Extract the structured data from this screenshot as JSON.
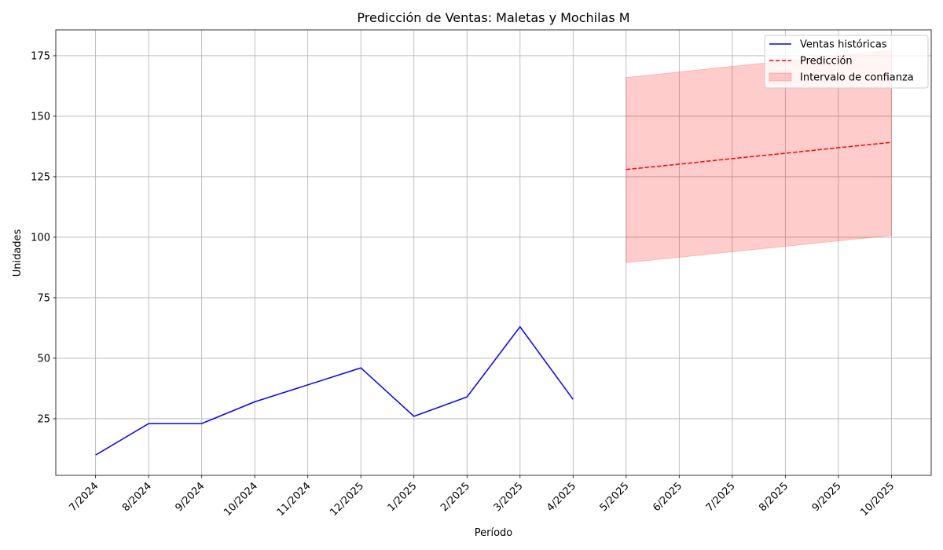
{
  "chart_data": {
    "type": "line",
    "title": "Predicción de Ventas: Maletas y Mochilas M",
    "xlabel": "Período",
    "ylabel": "Unidades",
    "categories": [
      "7/2024",
      "8/2024",
      "9/2024",
      "10/2024",
      "11/2024",
      "12/2025",
      "1/2025",
      "2/2025",
      "3/2025",
      "4/2025",
      "5/2025",
      "6/2025",
      "7/2025",
      "8/2025",
      "9/2025",
      "10/2025"
    ],
    "series": [
      {
        "name": "Ventas históricas",
        "color": "#0000ff",
        "linestyle": "solid",
        "values": [
          10,
          23,
          23,
          32,
          39,
          46,
          26,
          34,
          63,
          33,
          null,
          null,
          null,
          null,
          null,
          null
        ]
      },
      {
        "name": "Predicción",
        "color": "#ff0000",
        "linestyle": "dashed",
        "values": [
          null,
          null,
          null,
          null,
          null,
          null,
          null,
          null,
          null,
          null,
          128,
          130.2,
          132.5,
          134.7,
          137,
          139.2
        ]
      },
      {
        "name": "Intervalo de confianza",
        "color": "#ff0000",
        "kind": "band",
        "opacity": 0.2,
        "lower": [
          null,
          null,
          null,
          null,
          null,
          null,
          null,
          null,
          null,
          null,
          89.5,
          91.7,
          94,
          96.2,
          98.5,
          100.7
        ],
        "upper": [
          null,
          null,
          null,
          null,
          null,
          null,
          null,
          null,
          null,
          null,
          166,
          168.3,
          170.6,
          172.8,
          175.1,
          177.3
        ]
      }
    ],
    "ylim": [
      1.6,
      185.7
    ],
    "yticks": [
      25,
      50,
      75,
      100,
      125,
      150,
      175
    ],
    "grid": true,
    "legend": "upper right"
  }
}
